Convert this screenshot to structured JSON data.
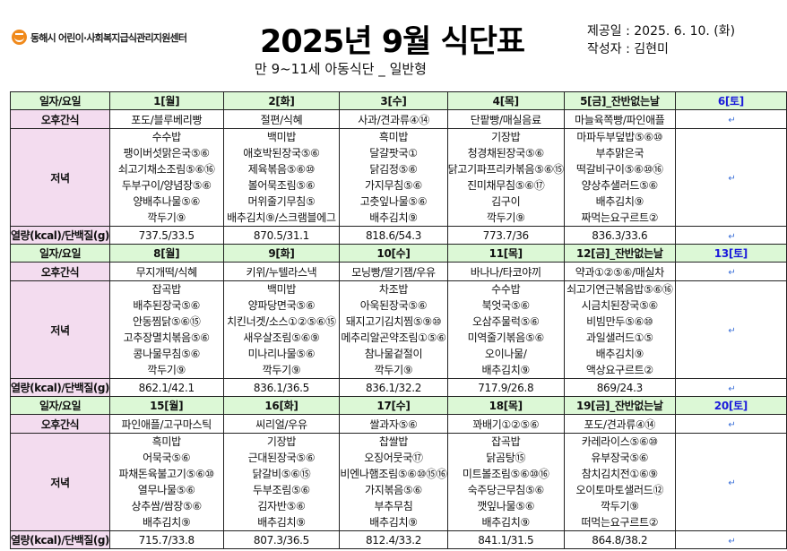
{
  "header": {
    "org_name": "동해시 어린이·사회복지급식관리지원센터",
    "title": "2025년 9월 식단표",
    "subtitle": "만 9~11세 아동식단 _ 일반형",
    "provided_label": "제공일 : 2025. 6. 10. (화)",
    "author_label": "작성자 : 김현미"
  },
  "row_labels": {
    "date": "일자/요일",
    "snack": "오후간식",
    "dinner": "저녁",
    "nutrition": "열량(kcal)/단백질(g)"
  },
  "colors": {
    "header_bg": "#dcf8d6",
    "label_bg": "#f3dcef",
    "saturday_text": "#1a1adb",
    "logo": "#f08a1c"
  },
  "weeks": [
    {
      "days": [
        {
          "date": "1[월]",
          "snack": "포도/블루베리빵",
          "dinner": [
            "수수밥",
            "팽이버섯맑은국⑤⑥",
            "쇠고기채소조림⑤⑥⑯",
            "두부구이/양념장⑤⑥",
            "양배추나물⑤⑥",
            "깍두기⑨"
          ],
          "nutrition": "737.5/33.5"
        },
        {
          "date": "2[화]",
          "snack": "절편/식혜",
          "dinner": [
            "백미밥",
            "애호박된장국⑤⑥",
            "제육볶음⑤⑥⑩",
            "볼어묵조림⑤⑥",
            "머위줄기무침⑤",
            "배추김치⑨/스크램블에그"
          ],
          "nutrition": "870.5/31.1"
        },
        {
          "date": "3[수]",
          "snack": "사과/견과류④⑭",
          "dinner": [
            "흑미밥",
            "달걀팟국①",
            "닭김정⑤⑥",
            "가지무침⑤⑥",
            "고춧잎나물⑤⑥",
            "배추김치⑨"
          ],
          "nutrition": "818.6/54.3"
        },
        {
          "date": "4[목]",
          "snack": "단팥빵/매실음료",
          "dinner": [
            "기장밥",
            "청경채된장국⑤⑥",
            "닭고기파프리카볶음⑤⑥⑮",
            "진미채무침⑤⑥⑰",
            "김구이",
            "깍두기⑨"
          ],
          "nutrition": "773.7/36"
        },
        {
          "date": "5[금]_잔반없는날",
          "snack": "마늘육쪽빵/파인애플",
          "dinner": [
            "마파두부덮밥⑤⑥⑩",
            "부추맑은국",
            "떡갈비구이⑤⑥⑩⑯",
            "양상추샐러드⑤⑥",
            "배추김치⑨",
            "짜먹는요구르트②"
          ],
          "nutrition": "836.3/33.6"
        },
        {
          "date": "6[토]",
          "snack": "",
          "dinner": [],
          "nutrition": "",
          "saturday": true
        }
      ]
    },
    {
      "days": [
        {
          "date": "8[월]",
          "snack": "무지개떡/식혜",
          "dinner": [
            "잡곡밥",
            "배추된장국⑤⑥",
            "안동찜닭⑤⑥⑮",
            "고추장멸치볶음⑤⑥",
            "콩나물무침⑤⑥",
            "깍두기⑨"
          ],
          "nutrition": "862.1/42.1"
        },
        {
          "date": "9[화]",
          "snack": "키위/누텔라스낵",
          "dinner": [
            "백미밥",
            "양파당면국⑤⑥",
            "치킨너겟/소스①②⑤⑥⑮",
            "새우살조림⑤⑥⑨",
            "미나리나물⑤⑥",
            "깍두기⑨"
          ],
          "nutrition": "836.1/36.5"
        },
        {
          "date": "10[수]",
          "snack": "모닝빵/딸기잼/우유",
          "dinner": [
            "차조밥",
            "아욱된장국⑤⑥",
            "돼지고기김치찜⑤⑨⑩",
            "메추리알곤약조림①⑤⑥",
            "참나물겉절이",
            "깍두기⑨"
          ],
          "nutrition": "836.1/32.2"
        },
        {
          "date": "11[목]",
          "snack": "바나나/타코야끼",
          "dinner": [
            "수수밥",
            "북엇국⑤⑥",
            "오삼주물럭⑤⑥",
            "미역줄기볶음⑤⑥",
            "오이나물/",
            "배추김치⑨"
          ],
          "nutrition": "717.9/26.8"
        },
        {
          "date": "12[금]_잔반없는날",
          "snack": "약과①②⑤⑥/매실차",
          "dinner": [
            "쇠고기연근볶음밥⑤⑥⑯",
            "시금치된장국⑤⑥",
            "비빔만두⑤⑥⑩",
            "과일샐러드①⑤",
            "배추김치⑨",
            "액상요구르트②"
          ],
          "nutrition": "869/24.3"
        },
        {
          "date": "13[토]",
          "snack": "",
          "dinner": [],
          "nutrition": "",
          "saturday": true
        }
      ]
    },
    {
      "days": [
        {
          "date": "15[월]",
          "snack": "파인애플/고구마스틱",
          "dinner": [
            "흑미밥",
            "어묵국⑤⑥",
            "파채돈육불고기⑤⑥⑩",
            "열무나물⑤⑥",
            "상추쌈/쌈장⑤⑥",
            "배추김치⑨"
          ],
          "nutrition": "715.7/33.8"
        },
        {
          "date": "16[화]",
          "snack": "씨리얼/우유",
          "dinner": [
            "기장밥",
            "근대된장국⑤⑥",
            "닭갈비⑤⑥⑮",
            "두부조림⑤⑥",
            "김자반⑤⑥",
            "배추김치⑨"
          ],
          "nutrition": "807.3/36.5"
        },
        {
          "date": "17[수]",
          "snack": "쌀과자⑤⑥",
          "dinner": [
            "찹쌀밥",
            "오징어뭇국⑰",
            "비엔나햄조림⑤⑥⑩⑮⑯",
            "가지볶음⑤⑥",
            "부추무침",
            "배추김치⑨"
          ],
          "nutrition": "812.4/33.2"
        },
        {
          "date": "18[목]",
          "snack": "꽈배기①②⑤⑥",
          "dinner": [
            "잡곡밥",
            "닭곰탕⑮",
            "미트볼조림⑤⑥⑩⑯",
            "숙주당근무침⑤⑥",
            "깻잎나물⑤⑥",
            "배추김치⑨"
          ],
          "nutrition": "841.1/31.5"
        },
        {
          "date": "19[금]_잔반없는날",
          "snack": "포도/견과류④⑭",
          "dinner": [
            "카레라이스⑤⑥⑩",
            "유부장국⑤⑥",
            "참치김치전①⑥⑨",
            "오이토마토샐러드⑫",
            "깍두기⑨",
            "떠먹는요구르트②"
          ],
          "nutrition": "864.8/38.2"
        },
        {
          "date": "20[토]",
          "snack": "",
          "dinner": [],
          "nutrition": "",
          "saturday": true
        }
      ]
    }
  ]
}
